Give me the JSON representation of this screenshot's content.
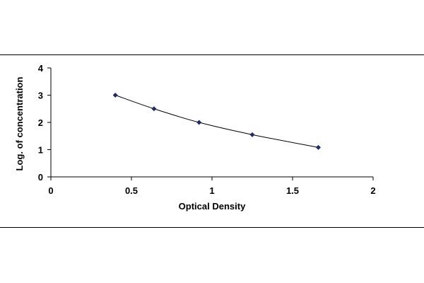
{
  "chart_data": {
    "type": "scatter",
    "xlabel": "Optical Density",
    "ylabel": "Log. of concentration",
    "xlim": [
      0,
      2
    ],
    "ylim": [
      0,
      4
    ],
    "x_ticks": [
      "0",
      "0.5",
      "1",
      "1.5",
      "2"
    ],
    "y_ticks": [
      "0",
      "1",
      "2",
      "3",
      "4"
    ],
    "grid": false,
    "legend": "none",
    "trendline": true,
    "series": [
      {
        "x": [
          0.4,
          0.64,
          0.92,
          1.25,
          1.66
        ],
        "y": [
          3.0,
          2.5,
          2.0,
          1.55,
          1.08
        ],
        "color": "#1f2a6e"
      }
    ]
  }
}
